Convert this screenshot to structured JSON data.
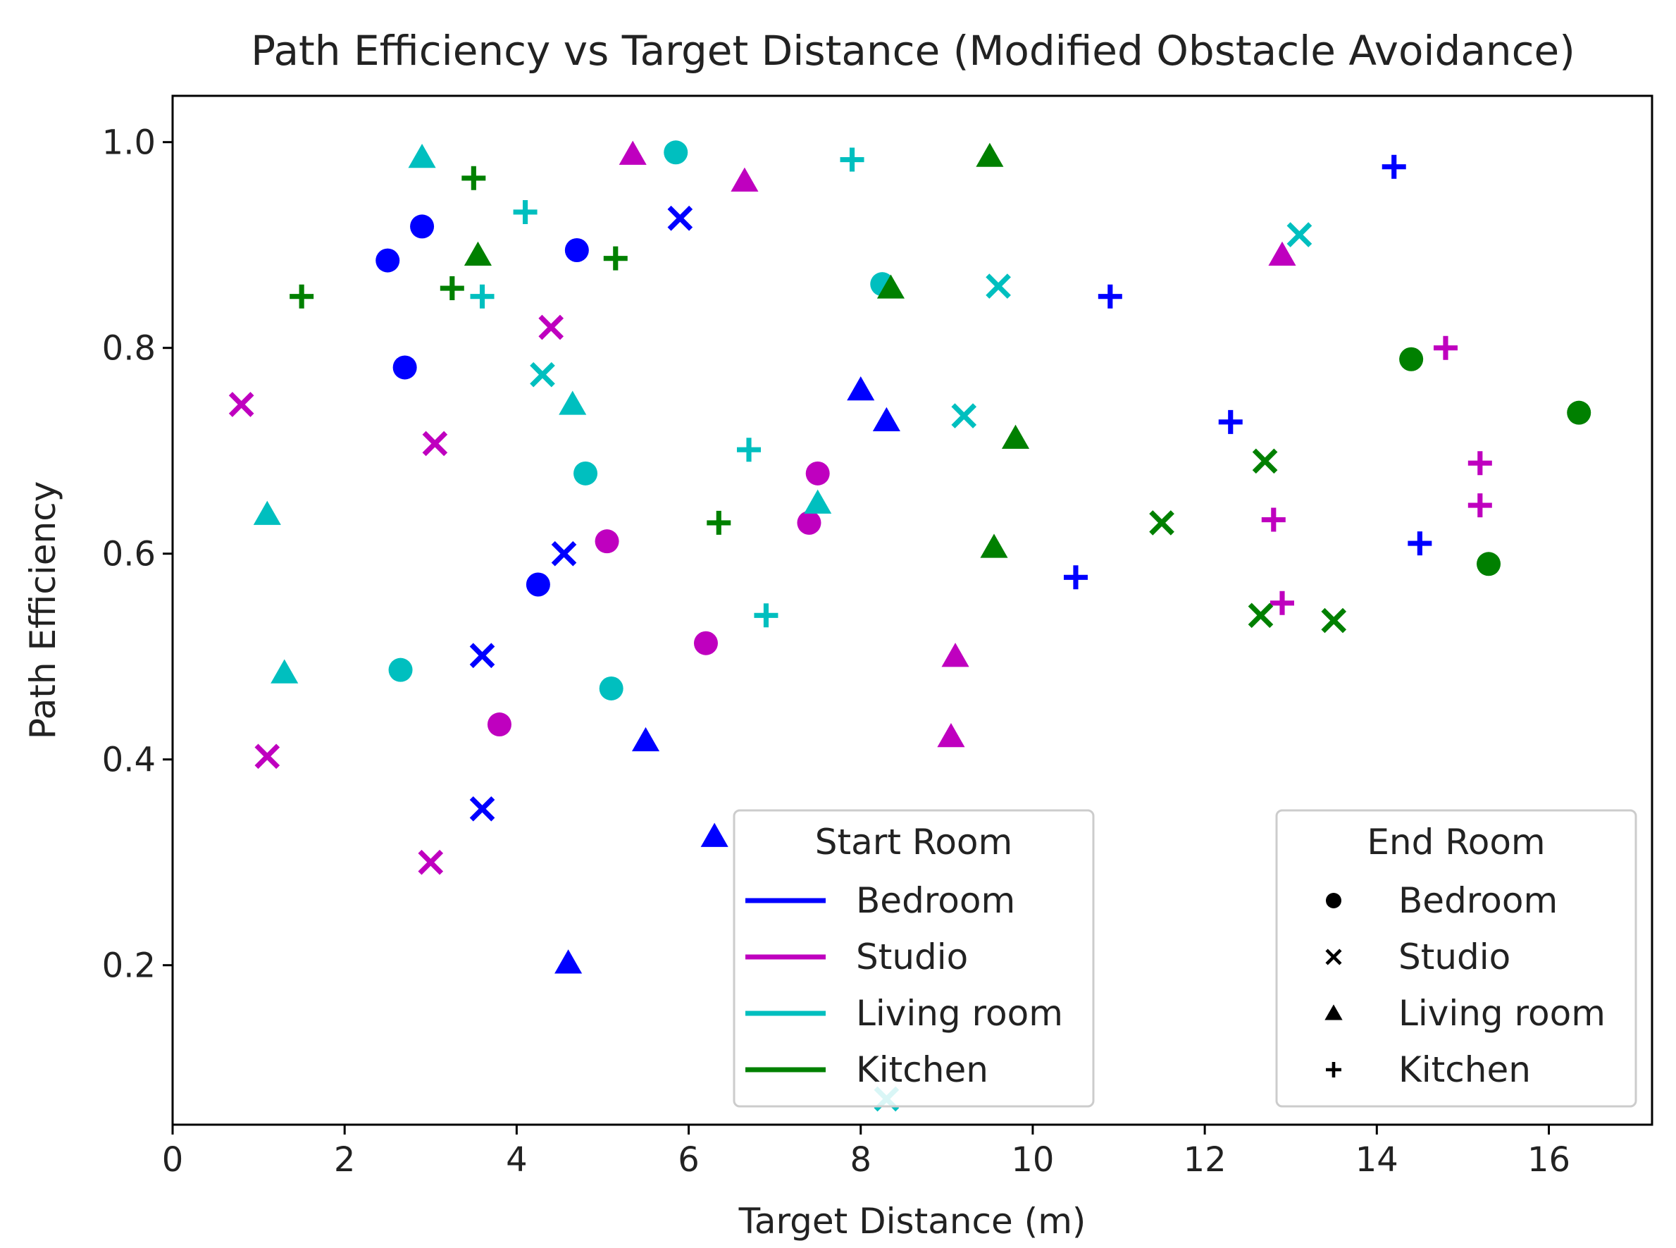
{
  "chart_data": {
    "type": "scatter",
    "title": "Path Efficiency vs Target Distance (Modified Obstacle Avoidance)",
    "xlabel": "Target Distance (m)",
    "ylabel": "Path Efficiency",
    "xlim": [
      0,
      17.2
    ],
    "ylim": [
      0.045,
      1.045
    ],
    "xticks": [
      0,
      2,
      4,
      6,
      8,
      10,
      12,
      14,
      16
    ],
    "xtick_labels": [
      "0",
      "2",
      "4",
      "6",
      "8",
      "10",
      "12",
      "14",
      "16"
    ],
    "yticks": [
      0.2,
      0.4,
      0.6,
      0.8,
      1.0
    ],
    "ytick_labels": [
      "0.2",
      "0.4",
      "0.6",
      "0.8",
      "1.0"
    ],
    "grid": false,
    "start_rooms": [
      {
        "key": "bedroom",
        "name": "Bedroom",
        "color": "#0000ff"
      },
      {
        "key": "studio",
        "name": "Studio",
        "color": "#bf00bf"
      },
      {
        "key": "living",
        "name": "Living room",
        "color": "#00bfbf"
      },
      {
        "key": "kitchen",
        "name": "Kitchen",
        "color": "#008000"
      }
    ],
    "end_rooms": [
      {
        "key": "bedroom",
        "name": "Bedroom",
        "marker": "circle"
      },
      {
        "key": "studio",
        "name": "Studio",
        "marker": "x"
      },
      {
        "key": "living",
        "name": "Living room",
        "marker": "triangle"
      },
      {
        "key": "kitchen",
        "name": "Kitchen",
        "marker": "plus"
      }
    ],
    "legend_start": {
      "title": "Start Room",
      "placement": "lower-center"
    },
    "legend_end": {
      "title": "End Room",
      "placement": "lower-right"
    },
    "points": [
      {
        "x": 2.5,
        "y": 0.885,
        "start": "bedroom",
        "end": "bedroom"
      },
      {
        "x": 2.9,
        "y": 0.918,
        "start": "bedroom",
        "end": "bedroom"
      },
      {
        "x": 4.7,
        "y": 0.895,
        "start": "bedroom",
        "end": "bedroom"
      },
      {
        "x": 2.7,
        "y": 0.781,
        "start": "bedroom",
        "end": "bedroom"
      },
      {
        "x": 4.25,
        "y": 0.57,
        "start": "bedroom",
        "end": "bedroom"
      },
      {
        "x": 5.9,
        "y": 0.926,
        "start": "bedroom",
        "end": "studio"
      },
      {
        "x": 4.55,
        "y": 0.6,
        "start": "bedroom",
        "end": "studio"
      },
      {
        "x": 3.6,
        "y": 0.501,
        "start": "bedroom",
        "end": "studio"
      },
      {
        "x": 3.6,
        "y": 0.352,
        "start": "bedroom",
        "end": "studio"
      },
      {
        "x": 8.0,
        "y": 0.759,
        "start": "bedroom",
        "end": "living"
      },
      {
        "x": 8.3,
        "y": 0.729,
        "start": "bedroom",
        "end": "living"
      },
      {
        "x": 5.5,
        "y": 0.418,
        "start": "bedroom",
        "end": "living"
      },
      {
        "x": 6.3,
        "y": 0.325,
        "start": "bedroom",
        "end": "living"
      },
      {
        "x": 4.6,
        "y": 0.202,
        "start": "bedroom",
        "end": "living"
      },
      {
        "x": 14.2,
        "y": 0.976,
        "start": "bedroom",
        "end": "kitchen"
      },
      {
        "x": 10.9,
        "y": 0.85,
        "start": "bedroom",
        "end": "kitchen"
      },
      {
        "x": 12.3,
        "y": 0.728,
        "start": "bedroom",
        "end": "kitchen"
      },
      {
        "x": 14.5,
        "y": 0.61,
        "start": "bedroom",
        "end": "kitchen"
      },
      {
        "x": 10.5,
        "y": 0.577,
        "start": "bedroom",
        "end": "kitchen"
      },
      {
        "x": 7.5,
        "y": 0.678,
        "start": "studio",
        "end": "bedroom"
      },
      {
        "x": 7.4,
        "y": 0.63,
        "start": "studio",
        "end": "bedroom"
      },
      {
        "x": 5.05,
        "y": 0.612,
        "start": "studio",
        "end": "bedroom"
      },
      {
        "x": 6.2,
        "y": 0.513,
        "start": "studio",
        "end": "bedroom"
      },
      {
        "x": 3.8,
        "y": 0.434,
        "start": "studio",
        "end": "bedroom"
      },
      {
        "x": 4.4,
        "y": 0.82,
        "start": "studio",
        "end": "studio"
      },
      {
        "x": 0.8,
        "y": 0.745,
        "start": "studio",
        "end": "studio"
      },
      {
        "x": 3.05,
        "y": 0.707,
        "start": "studio",
        "end": "studio"
      },
      {
        "x": 1.1,
        "y": 0.403,
        "start": "studio",
        "end": "studio"
      },
      {
        "x": 3.0,
        "y": 0.3,
        "start": "studio",
        "end": "studio"
      },
      {
        "x": 5.35,
        "y": 0.988,
        "start": "studio",
        "end": "living"
      },
      {
        "x": 6.65,
        "y": 0.962,
        "start": "studio",
        "end": "living"
      },
      {
        "x": 12.9,
        "y": 0.89,
        "start": "studio",
        "end": "living"
      },
      {
        "x": 9.1,
        "y": 0.5,
        "start": "studio",
        "end": "living"
      },
      {
        "x": 9.05,
        "y": 0.422,
        "start": "studio",
        "end": "living"
      },
      {
        "x": 14.8,
        "y": 0.8,
        "start": "studio",
        "end": "kitchen"
      },
      {
        "x": 15.2,
        "y": 0.688,
        "start": "studio",
        "end": "kitchen"
      },
      {
        "x": 15.2,
        "y": 0.647,
        "start": "studio",
        "end": "kitchen"
      },
      {
        "x": 12.8,
        "y": 0.633,
        "start": "studio",
        "end": "kitchen"
      },
      {
        "x": 12.9,
        "y": 0.552,
        "start": "studio",
        "end": "kitchen"
      },
      {
        "x": 5.85,
        "y": 0.99,
        "start": "living",
        "end": "bedroom"
      },
      {
        "x": 8.25,
        "y": 0.862,
        "start": "living",
        "end": "bedroom"
      },
      {
        "x": 4.8,
        "y": 0.678,
        "start": "living",
        "end": "bedroom"
      },
      {
        "x": 2.65,
        "y": 0.487,
        "start": "living",
        "end": "bedroom"
      },
      {
        "x": 5.1,
        "y": 0.469,
        "start": "living",
        "end": "bedroom"
      },
      {
        "x": 13.1,
        "y": 0.91,
        "start": "living",
        "end": "studio"
      },
      {
        "x": 9.6,
        "y": 0.86,
        "start": "living",
        "end": "studio"
      },
      {
        "x": 4.3,
        "y": 0.774,
        "start": "living",
        "end": "studio"
      },
      {
        "x": 9.2,
        "y": 0.734,
        "start": "living",
        "end": "studio"
      },
      {
        "x": 8.3,
        "y": 0.07,
        "start": "living",
        "end": "studio"
      },
      {
        "x": 2.9,
        "y": 0.985,
        "start": "living",
        "end": "living"
      },
      {
        "x": 4.65,
        "y": 0.745,
        "start": "living",
        "end": "living"
      },
      {
        "x": 7.5,
        "y": 0.649,
        "start": "living",
        "end": "living"
      },
      {
        "x": 1.1,
        "y": 0.638,
        "start": "living",
        "end": "living"
      },
      {
        "x": 1.3,
        "y": 0.484,
        "start": "living",
        "end": "living"
      },
      {
        "x": 7.9,
        "y": 0.983,
        "start": "living",
        "end": "kitchen"
      },
      {
        "x": 4.1,
        "y": 0.932,
        "start": "living",
        "end": "kitchen"
      },
      {
        "x": 3.6,
        "y": 0.85,
        "start": "living",
        "end": "kitchen"
      },
      {
        "x": 6.7,
        "y": 0.701,
        "start": "living",
        "end": "kitchen"
      },
      {
        "x": 6.9,
        "y": 0.54,
        "start": "living",
        "end": "kitchen"
      },
      {
        "x": 14.4,
        "y": 0.789,
        "start": "kitchen",
        "end": "bedroom"
      },
      {
        "x": 16.35,
        "y": 0.737,
        "start": "kitchen",
        "end": "bedroom"
      },
      {
        "x": 15.3,
        "y": 0.59,
        "start": "kitchen",
        "end": "bedroom"
      },
      {
        "x": 12.7,
        "y": 0.69,
        "start": "kitchen",
        "end": "studio"
      },
      {
        "x": 11.5,
        "y": 0.63,
        "start": "kitchen",
        "end": "studio"
      },
      {
        "x": 12.65,
        "y": 0.54,
        "start": "kitchen",
        "end": "studio"
      },
      {
        "x": 13.5,
        "y": 0.535,
        "start": "kitchen",
        "end": "studio"
      },
      {
        "x": 9.5,
        "y": 0.986,
        "start": "kitchen",
        "end": "living"
      },
      {
        "x": 3.55,
        "y": 0.89,
        "start": "kitchen",
        "end": "living"
      },
      {
        "x": 8.35,
        "y": 0.858,
        "start": "kitchen",
        "end": "living"
      },
      {
        "x": 9.8,
        "y": 0.712,
        "start": "kitchen",
        "end": "living"
      },
      {
        "x": 9.55,
        "y": 0.606,
        "start": "kitchen",
        "end": "living"
      },
      {
        "x": 3.5,
        "y": 0.965,
        "start": "kitchen",
        "end": "kitchen"
      },
      {
        "x": 1.5,
        "y": 0.85,
        "start": "kitchen",
        "end": "kitchen"
      },
      {
        "x": 3.25,
        "y": 0.858,
        "start": "kitchen",
        "end": "kitchen"
      },
      {
        "x": 5.15,
        "y": 0.887,
        "start": "kitchen",
        "end": "kitchen"
      },
      {
        "x": 6.35,
        "y": 0.63,
        "start": "kitchen",
        "end": "kitchen"
      }
    ]
  }
}
